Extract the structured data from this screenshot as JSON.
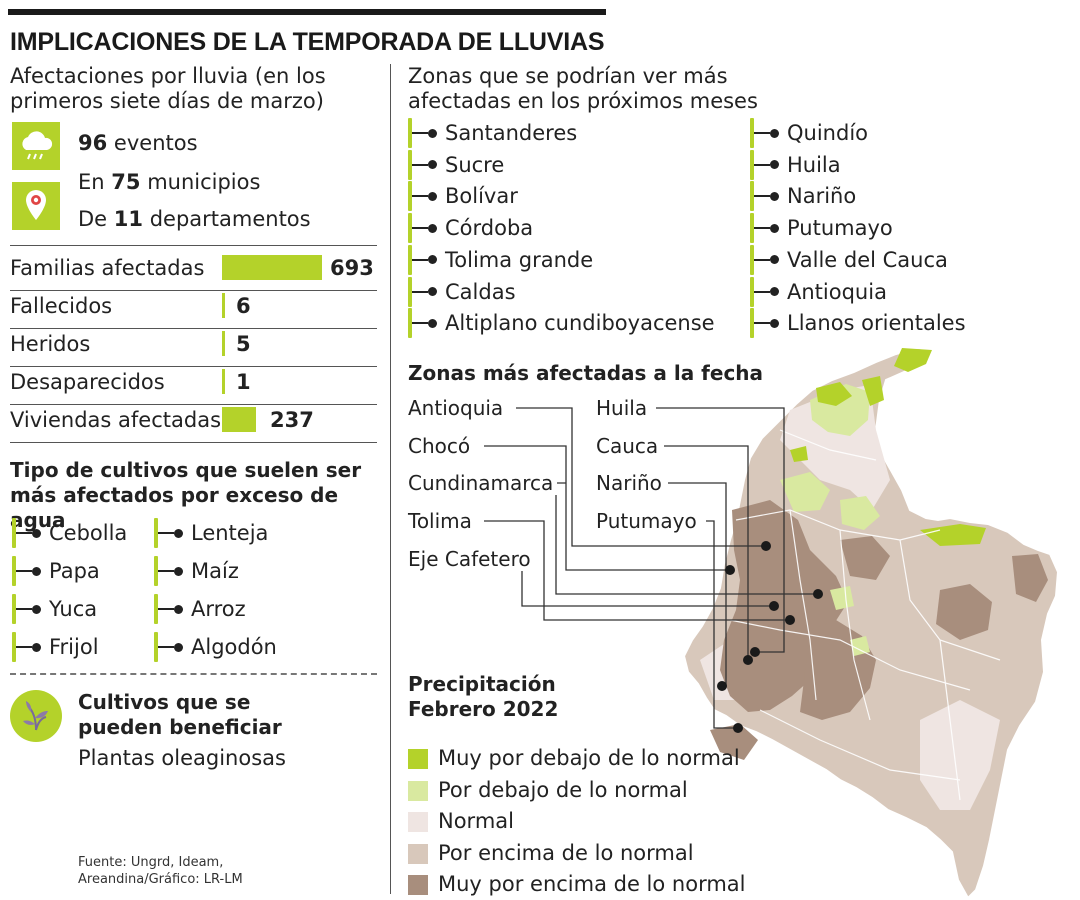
{
  "title": "IMPLICACIONES DE LA TEMPORADA DE LLUVIAS",
  "afectaciones": {
    "heading": "Afectaciones por lluvia (en los primeros siete días de marzo)",
    "eventos": {
      "num": "96",
      "text": "eventos"
    },
    "municipios": {
      "pre": "En",
      "num": "75",
      "text": "municipios"
    },
    "departamentos": {
      "pre": "De",
      "num": "11",
      "text": "departamentos"
    },
    "icons": [
      "rain-cloud-icon",
      "location-pin-icon"
    ]
  },
  "chart_data": {
    "type": "bar",
    "categories": [
      "Familias afectadas",
      "Fallecidos",
      "Heridos",
      "Desaparecidos",
      "Viviendas afectadas"
    ],
    "values": [
      693,
      6,
      5,
      1,
      237
    ],
    "labels": [
      "693",
      "6",
      "5",
      "1",
      "237"
    ],
    "color": "#b4d22a"
  },
  "cultivos": {
    "heading": "Tipo de cultivos que suelen ser más afectados por exceso de agua",
    "col1": [
      "Cebolla",
      "Papa",
      "Yuca",
      "Frijol"
    ],
    "col2": [
      "Lenteja",
      "Maíz",
      "Arroz",
      "Algodón"
    ]
  },
  "beneficio": {
    "heading1": "Cultivos que se",
    "heading2": "pueden beneficiar",
    "text": "Plantas oleaginosas",
    "icon": "plant-icon"
  },
  "source": {
    "line1": "Fuente: Ungrd, Ideam,",
    "line2": "Areandina/Gráfico: LR-LM"
  },
  "zonas_futuras": {
    "heading": "Zonas que se podrían ver más afectadas en los próximos meses",
    "col1": [
      "Santanderes",
      "Sucre",
      "Bolívar",
      "Córdoba",
      "Tolima grande",
      "Caldas",
      "Altiplano cundiboyacense"
    ],
    "col2": [
      "Quindío",
      "Huila",
      "Nariño",
      "Putumayo",
      "Valle del Cauca",
      "Antioquia",
      "Llanos orientales"
    ]
  },
  "zonas_actuales": {
    "heading": "Zonas más afectadas a la fecha",
    "left": [
      "Antioquia",
      "Chocó",
      "Cundinamarca",
      "Tolima",
      "Eje Cafetero"
    ],
    "right": [
      "Huila",
      "Cauca",
      "Nariño",
      "Putumayo"
    ]
  },
  "legend": {
    "title1": "Precipitación",
    "title2": "Febrero 2022",
    "items": [
      {
        "label": "Muy por debajo de lo normal",
        "color": "#b4d22a"
      },
      {
        "label": "Por debajo de lo normal",
        "color": "#d9e9a0"
      },
      {
        "label": "Normal",
        "color": "#efe5e2"
      },
      {
        "label": "Por encima de lo normal",
        "color": "#d8c8bb"
      },
      {
        "label": "Muy por encima de lo normal",
        "color": "#a88e7d"
      }
    ]
  }
}
